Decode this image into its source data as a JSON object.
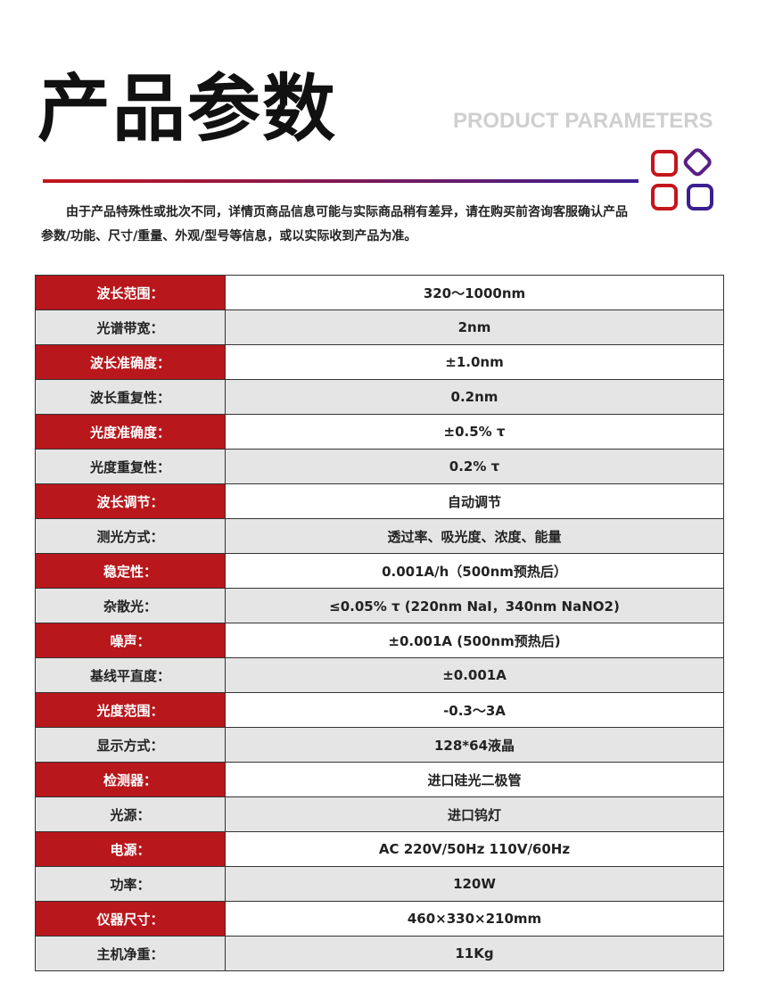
{
  "header": {
    "title": "产品参数",
    "subtitle": "PRODUCT PARAMETERS"
  },
  "note": "由于产品特殊性或批次不同，详情页商品信息可能与实际商品稍有差异，请在购买前咨询客服确认产品参数/功能、尺寸/重量、外观/型号等信息，或以实际收到产品为准。",
  "table": {
    "rows": [
      [
        "波长范围：",
        "320～1000nm"
      ],
      [
        "光谱带宽：",
        "2nm"
      ],
      [
        "波长准确度：",
        "±1.0nm"
      ],
      [
        "波长重复性：",
        "0.2nm"
      ],
      [
        "光度准确度：",
        "±0.5% τ"
      ],
      [
        "光度重复性：",
        "0.2% τ"
      ],
      [
        "波长调节：",
        "自动调节"
      ],
      [
        "测光方式：",
        "透过率、吸光度、浓度、能量"
      ],
      [
        "稳定性：",
        "0.001A/h（500nm预热后）"
      ],
      [
        "杂散光：",
        "≤0.05% τ (220nm NaI，340nm NaNO2)"
      ],
      [
        "噪声：",
        "±0.001A (500nm预热后)"
      ],
      [
        "基线平直度：",
        "±0.001A"
      ],
      [
        "光度范围：",
        "-0.3～3A"
      ],
      [
        "显示方式：",
        "128*64液晶"
      ],
      [
        "检测器：",
        "进口硅光二极管"
      ],
      [
        "光源：",
        "进口钨灯"
      ],
      [
        "电源：",
        "AC 220V/50Hz 110V/60Hz"
      ],
      [
        "功率：",
        "120W"
      ],
      [
        "仪器尺寸：",
        "460×330×210mm"
      ],
      [
        "主机净重：",
        "11Kg"
      ]
    ]
  }
}
